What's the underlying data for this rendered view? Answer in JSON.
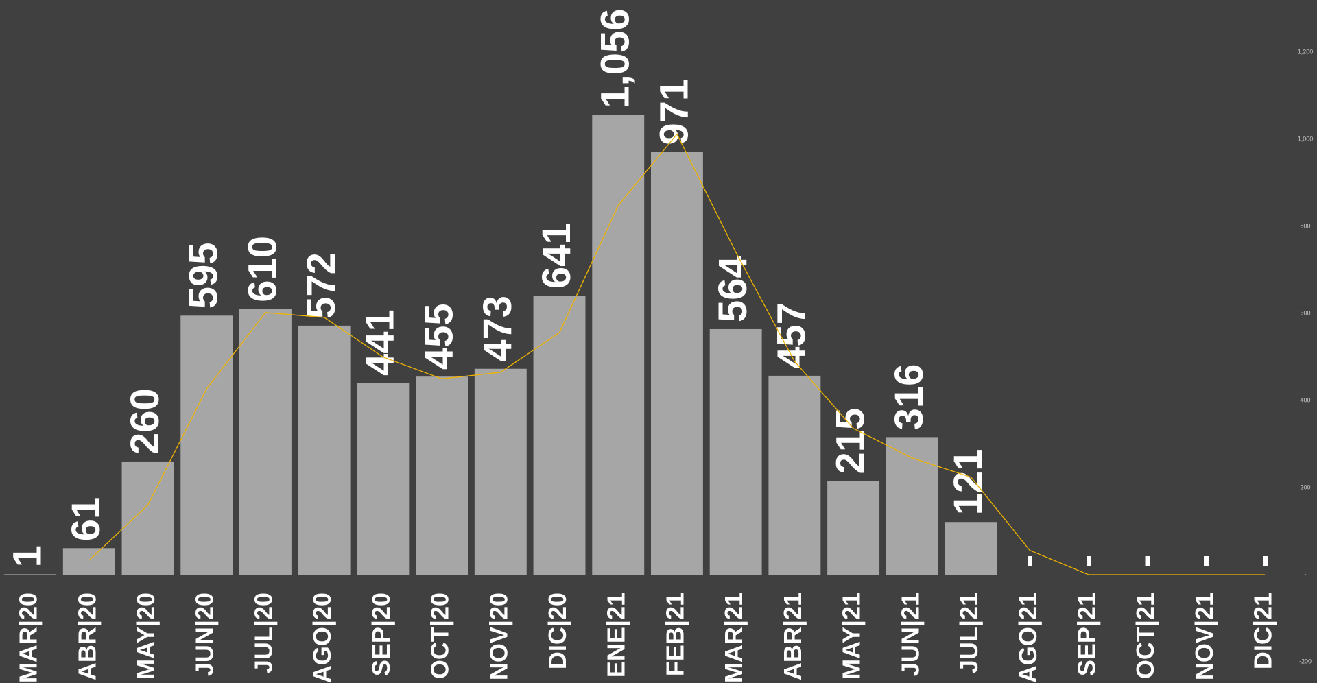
{
  "chart_data": {
    "type": "bar",
    "categories": [
      "MAR|20",
      "ABR|20",
      "MAY|20",
      "JUN|20",
      "JUL|20",
      "AGO|20",
      "SEP|20",
      "OCT|20",
      "NOV|20",
      "DIC|20",
      "ENE|21",
      "FEB|21",
      "MAR|21",
      "ABR|21",
      "MAY|21",
      "JUN|21",
      "JUL|21",
      "AGO|21",
      "SEP|21",
      "OCT|21",
      "NOV|21",
      "DIC|21"
    ],
    "series": [
      {
        "type": "bar",
        "color": "#a6a6a6",
        "values": [
          1,
          61,
          260,
          595,
          610,
          572,
          441,
          455,
          473,
          641,
          1056,
          971,
          564,
          457,
          215,
          316,
          121,
          0,
          0,
          0,
          0,
          0
        ],
        "value_labels": [
          "1",
          "61",
          "260",
          "595",
          "610",
          "572",
          "441",
          "455",
          "473",
          "641",
          "1,056",
          "971",
          "564",
          "457",
          "215",
          "316",
          "121",
          "-",
          "-",
          "-",
          "-",
          "-"
        ]
      },
      {
        "type": "line",
        "color": "#f0b400",
        "values": [
          null,
          33,
          160,
          427,
          602,
          591,
          500,
          450,
          465,
          556,
          848,
          1012,
          741,
          490,
          336,
          268,
          224,
          56,
          0,
          0,
          0,
          0
        ]
      }
    ],
    "ylim": [
      -200,
      1320
    ],
    "yticks": [
      {
        "value": 1200,
        "label": "1,200"
      },
      {
        "value": 1000,
        "label": "1,000"
      },
      800,
      600,
      400,
      200,
      {
        "value": 0,
        "label": "-"
      },
      -200
    ]
  }
}
